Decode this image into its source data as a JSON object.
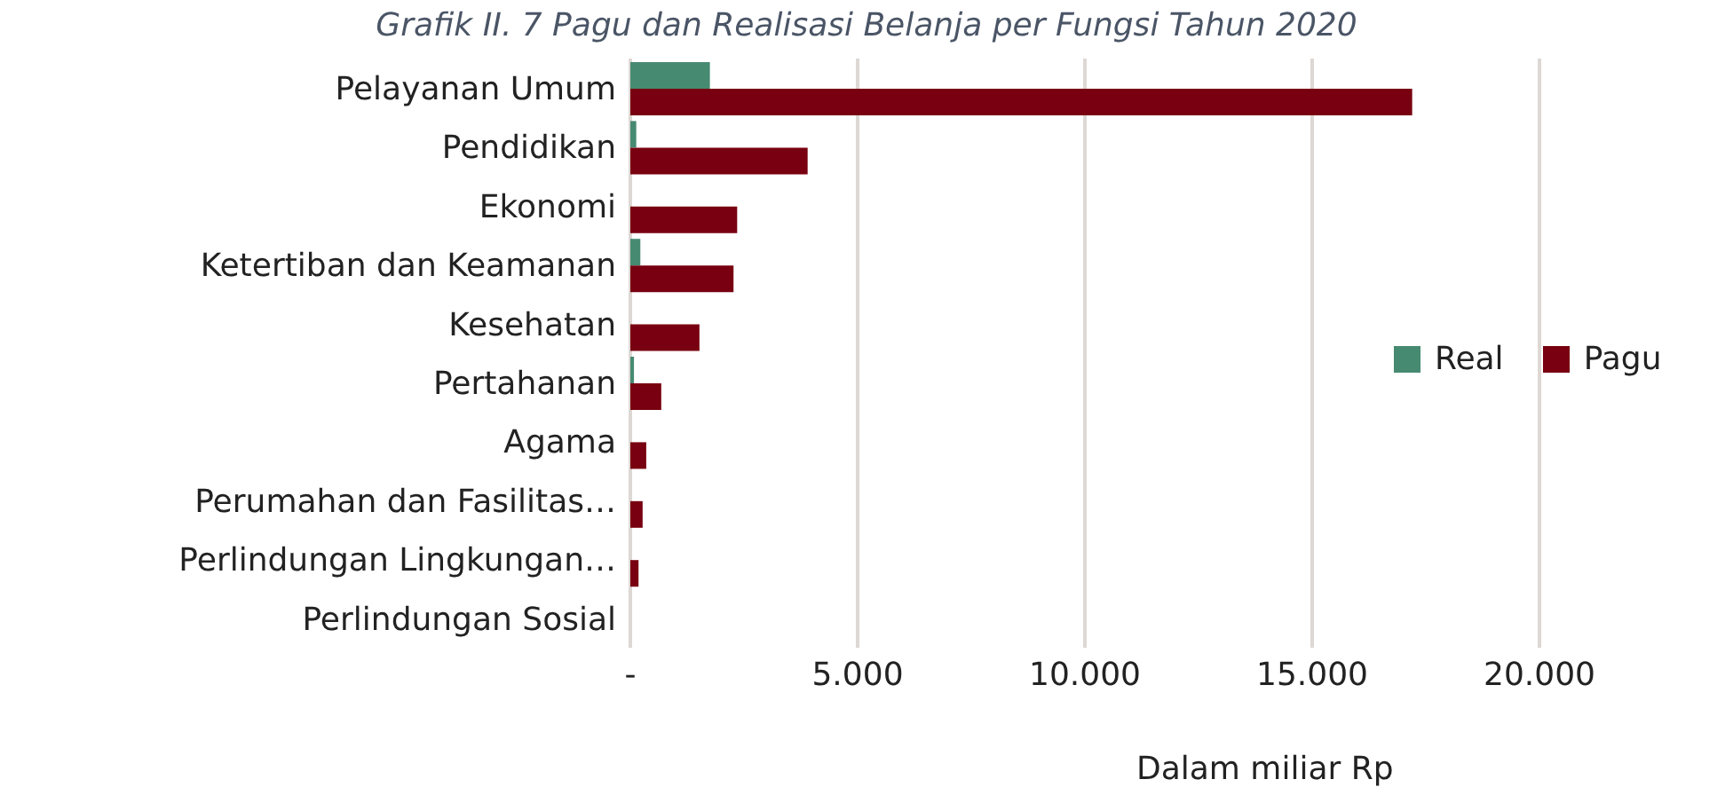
{
  "chart_data": {
    "type": "bar",
    "orientation": "horizontal",
    "title": "Grafik II. 7 Pagu dan Realisasi Belanja per Fungsi Tahun 2020",
    "xlabel": "Dalam miliar Rp",
    "categories": [
      "Pelayanan Umum",
      "Pendidikan",
      "Ekonomi",
      "Ketertiban dan Keamanan",
      "Kesehatan",
      "Pertahanan",
      "Agama",
      "Perumahan dan Fasilitas…",
      "Perlindungan Lingkungan…",
      "Perlindungan Sosial"
    ],
    "series": [
      {
        "name": "Real",
        "color": "#468a72",
        "values": [
          1750,
          130,
          0,
          220,
          0,
          80,
          0,
          0,
          0,
          0
        ]
      },
      {
        "name": "Pagu",
        "color": "#780010",
        "values": [
          17200,
          3900,
          2350,
          2270,
          1520,
          680,
          350,
          270,
          180,
          0
        ]
      }
    ],
    "xlim": [
      0,
      20000
    ],
    "xticks": [
      {
        "value": 0,
        "label": "-"
      },
      {
        "value": 5000,
        "label": "5.000"
      },
      {
        "value": 10000,
        "label": "10.000"
      },
      {
        "value": 15000,
        "label": "15.000"
      },
      {
        "value": 20000,
        "label": "20.000"
      }
    ],
    "grid": "x",
    "legend": "right"
  }
}
